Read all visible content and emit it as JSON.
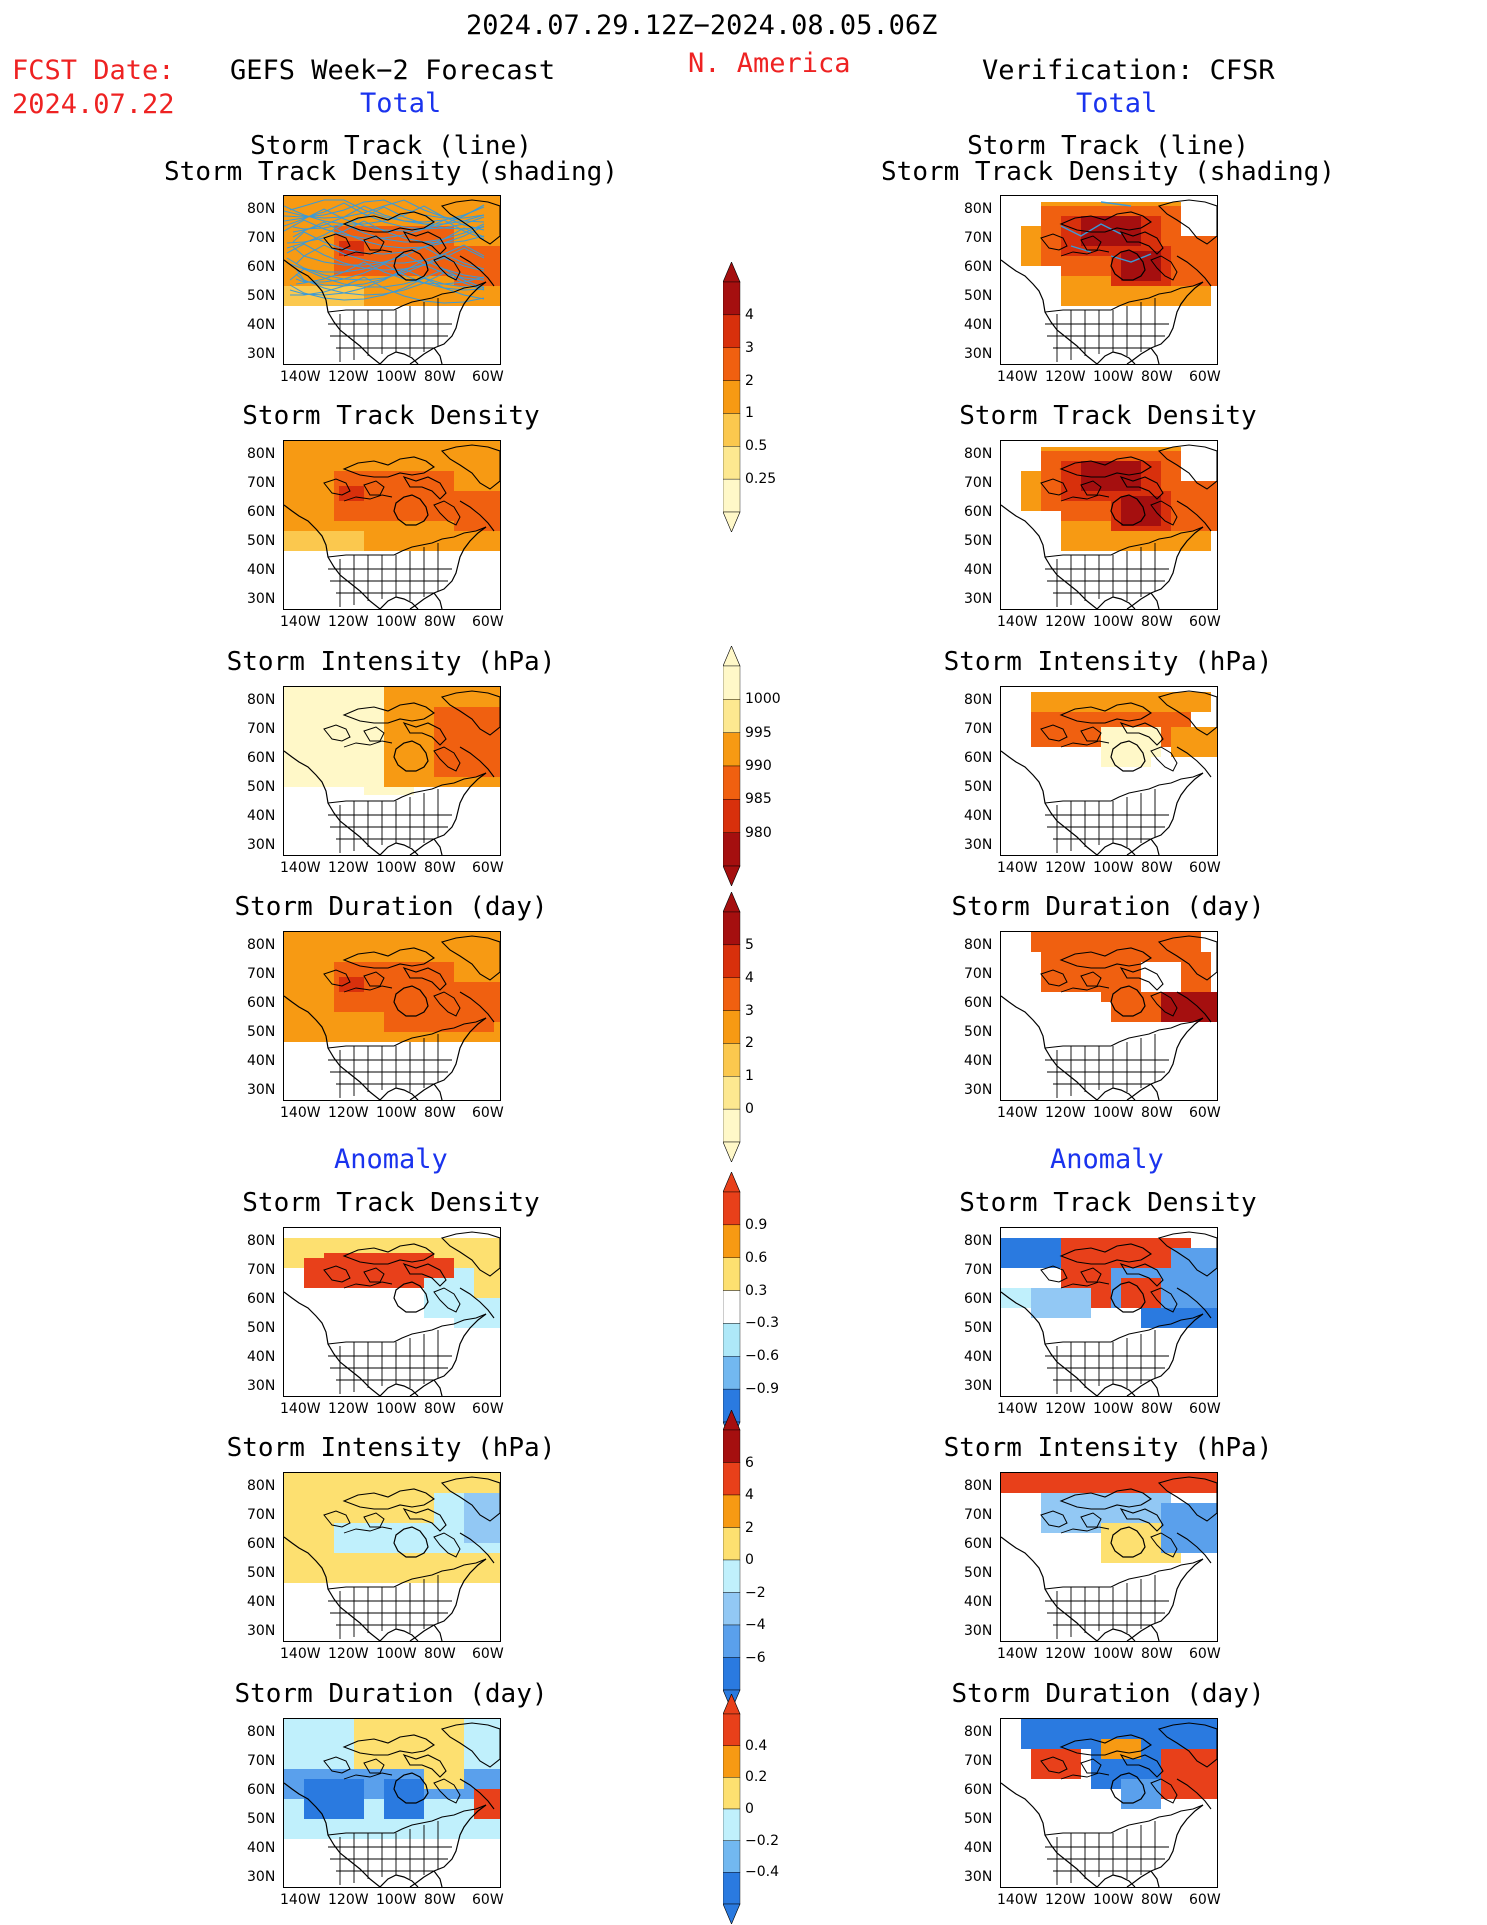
{
  "header": {
    "date_range": "2024.07.29.12Z−2024.08.05.06Z",
    "fcst_label": "FCST Date:",
    "fcst_date": "2024.07.22",
    "left_title": "GEFS Week−2 Forecast",
    "region": "N. America",
    "right_title": "Verification: CFSR",
    "total_left": "Total",
    "total_right": "Total",
    "anomaly_left": "Anomaly",
    "anomaly_right": "Anomaly"
  },
  "panel_titles": {
    "track_line": "Storm Track (line)",
    "track_shading": "Storm Track Density (shading)",
    "density": "Storm Track Density",
    "intensity": "Storm Intensity (hPa)",
    "duration": "Storm Duration (day)"
  },
  "axes": {
    "lon_labels": [
      "140W",
      "120W",
      "100W",
      "80W",
      "60W"
    ],
    "lat_labels": [
      "80N",
      "70N",
      "60N",
      "50N",
      "40N",
      "30N"
    ]
  },
  "colorbars": {
    "density": {
      "labels": [
        "4",
        "3",
        "2",
        "1",
        "0.5",
        "0.25"
      ],
      "colors": [
        "#a50f0f",
        "#d8300c",
        "#f06010",
        "#f79a13",
        "#fbc84e",
        "#fde890",
        "#fff8c8"
      ]
    },
    "intensity": {
      "labels": [
        "1000",
        "995",
        "990",
        "985",
        "980"
      ],
      "colors": [
        "#fff8c8",
        "#fde890",
        "#f79a13",
        "#f06010",
        "#d8300c",
        "#a50f0f"
      ]
    },
    "duration": {
      "labels": [
        "5",
        "4",
        "3",
        "2",
        "1",
        "0"
      ],
      "colors": [
        "#a50f0f",
        "#d8300c",
        "#f06010",
        "#f79a13",
        "#fbc84e",
        "#fde890",
        "#fff8c8"
      ]
    },
    "anom_density": {
      "labels": [
        "0.9",
        "0.6",
        "0.3",
        "−0.3",
        "−0.6",
        "−0.9"
      ],
      "colors": [
        "#e8401a",
        "#f79a13",
        "#fde070",
        "#ffffff",
        "#aee8f8",
        "#72b8f0",
        "#2a7ae0"
      ]
    },
    "anom_intensity": {
      "labels": [
        "6",
        "4",
        "2",
        "0",
        "−2",
        "−4",
        "−6"
      ],
      "colors": [
        "#a50f0f",
        "#e8401a",
        "#f79a13",
        "#fde070",
        "#c0f0fc",
        "#92c8f4",
        "#5aa0ec",
        "#2a7ae0"
      ]
    },
    "anom_duration": {
      "labels": [
        "0.4",
        "0.2",
        "0",
        "−0.2",
        "−0.4"
      ],
      "colors": [
        "#e8401a",
        "#f79a13",
        "#fde070",
        "#c0f0fc",
        "#72b8f0",
        "#2a7ae0"
      ]
    }
  },
  "colors": {
    "title_red": "#ee2222",
    "title_blue": "#1a33ee",
    "track_line": "#3a9ad8"
  }
}
